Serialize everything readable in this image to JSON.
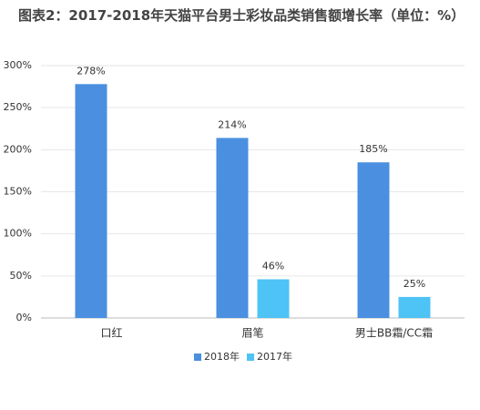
{
  "chart_data": {
    "type": "bar",
    "title": "图表2：2017-2018年天猫平台男士彩妆品类销售额增长率（单位：%）",
    "categories": [
      "口红",
      "眉笔",
      "男士BB霜/CC霜"
    ],
    "series": [
      {
        "name": "2018年",
        "color": "#4a8fe0",
        "values": [
          278,
          214,
          185
        ],
        "value_labels": [
          "278%",
          "214%",
          "185%"
        ]
      },
      {
        "name": "2017年",
        "color": "#4ec3f5",
        "values": [
          null,
          46,
          25
        ],
        "value_labels": [
          null,
          "46%",
          "25%"
        ]
      }
    ],
    "ylim": [
      0,
      300
    ],
    "yticks": [
      {
        "value": 0,
        "label": "0%"
      },
      {
        "value": 50,
        "label": "50%"
      },
      {
        "value": 100,
        "label": "100%"
      },
      {
        "value": 150,
        "label": "150%"
      },
      {
        "value": 200,
        "label": "200%"
      },
      {
        "value": 250,
        "label": "250%"
      },
      {
        "value": 300,
        "label": "300%"
      }
    ],
    "grid": true,
    "legend": "bottom"
  }
}
